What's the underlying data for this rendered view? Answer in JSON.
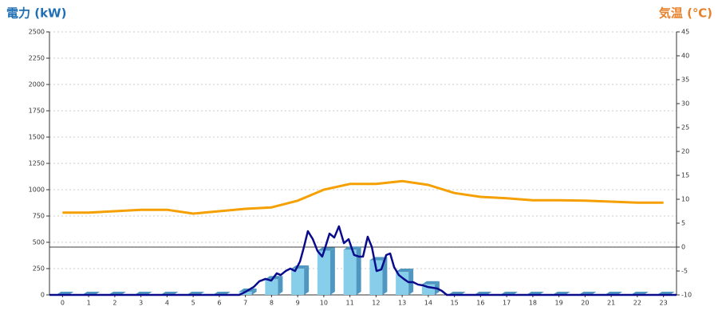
{
  "chart_data": {
    "type": "bar",
    "y_title": "電力 (kW)",
    "y2_title": "気温 (℃)",
    "categories": [
      "0",
      "1",
      "2",
      "3",
      "4",
      "5",
      "6",
      "7",
      "8",
      "9",
      "10",
      "11",
      "12",
      "13",
      "14",
      "15",
      "16",
      "17",
      "18",
      "19",
      "20",
      "21",
      "22",
      "23"
    ],
    "xlim": [
      0,
      24
    ],
    "ylim": [
      0,
      2500
    ],
    "yticks": [
      0,
      250,
      500,
      750,
      1000,
      1250,
      1500,
      1750,
      2000,
      2250,
      2500
    ],
    "y2lim": [
      -10,
      45
    ],
    "y2ticks": [
      -10,
      -5,
      0,
      5,
      10,
      15,
      20,
      25,
      30,
      35,
      40,
      45
    ],
    "grid": true,
    "y2_zero_line": true,
    "series": [
      {
        "type": "bar",
        "color": "#87ceeb",
        "side_color": "#4f97c0",
        "values": [
          0,
          0,
          0,
          0,
          0,
          0,
          0,
          30,
          150,
          250,
          420,
          430,
          330,
          220,
          100,
          0,
          0,
          0,
          0,
          0,
          0,
          0,
          0,
          0
        ]
      },
      {
        "type": "line",
        "color": "#0a0a8c",
        "x": [
          0,
          7.27,
          7.51,
          7.82,
          8.03,
          8.27,
          8.49,
          8.7,
          8.85,
          9.04,
          9.22,
          9.4,
          9.59,
          9.74,
          9.89,
          10.08,
          10.26,
          10.44,
          10.56,
          10.72,
          10.9,
          11.08,
          11.27,
          11.45,
          11.66,
          11.85,
          12.0,
          12.18,
          12.34,
          12.52,
          12.7,
          12.89,
          13.04,
          13.19,
          13.37,
          13.56,
          13.74,
          13.92,
          14.11,
          14.29,
          14.47,
          14.66,
          14.84,
          15.02,
          15.21,
          24
        ],
        "values": [
          0,
          0,
          30,
          76,
          129,
          152,
          136,
          205,
          189,
          227,
          250,
          227,
          318,
          455,
          606,
          530,
          417,
          364,
          455,
          583,
          545,
          652,
          492,
          530,
          379,
          364,
          364,
          553,
          455,
          227,
          242,
          379,
          394,
          265,
          189,
          152,
          121,
          121,
          98,
          91,
          76,
          68,
          61,
          38,
          0,
          0
        ]
      },
      {
        "type": "line",
        "axis": "y2",
        "color": "#f5a000",
        "values": [
          7.2,
          7.2,
          7.5,
          7.8,
          7.8,
          7.0,
          7.5,
          8.0,
          8.3,
          9.7,
          12.0,
          13.2,
          13.2,
          13.8,
          13.0,
          11.3,
          10.5,
          10.2,
          9.8,
          9.8,
          9.7,
          9.5,
          9.3,
          9.3
        ]
      }
    ]
  }
}
